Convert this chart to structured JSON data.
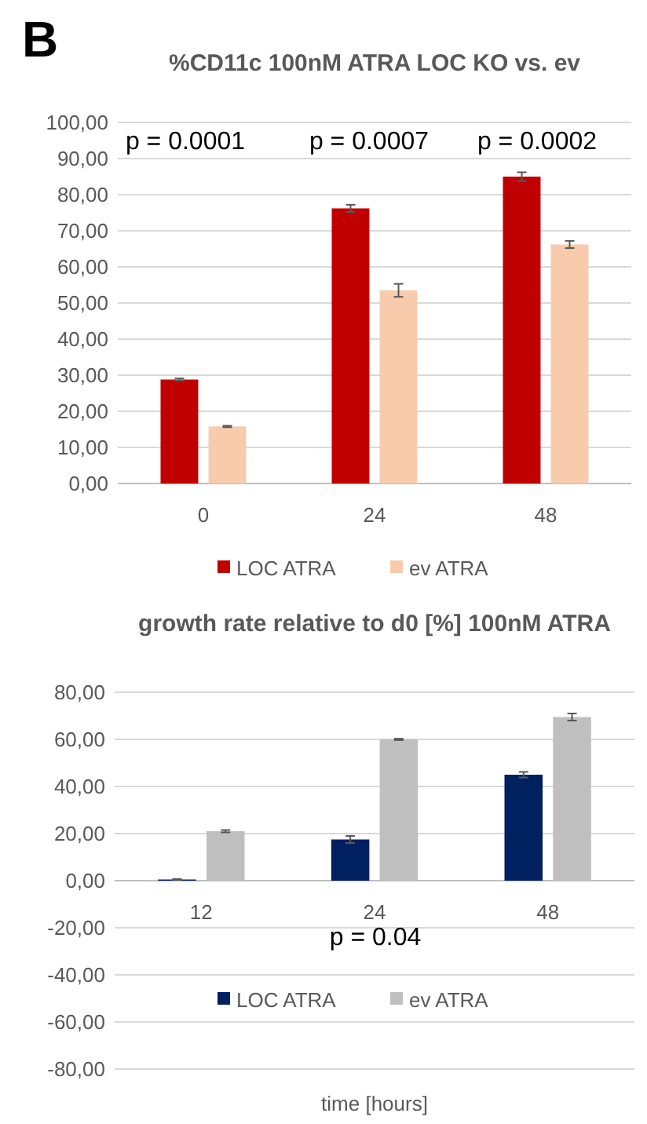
{
  "chart_data": [
    {
      "type": "bar",
      "title": "%CD11c 100nM ATRA LOC KO vs. ev",
      "categories": [
        "0",
        "24",
        "48"
      ],
      "series": [
        {
          "name": "LOC ATRA",
          "color": "#c00000",
          "values": [
            28.8,
            76.2,
            85
          ],
          "errors": [
            0.3,
            1,
            1.2
          ]
        },
        {
          "name": "ev ATRA",
          "color": "#f8cbad",
          "values": [
            15.8,
            53.5,
            66.2
          ],
          "errors": [
            0.2,
            1.8,
            1
          ]
        }
      ],
      "ylim": [
        0,
        100
      ],
      "yticks": [
        {
          "value": 0,
          "label": "0,00"
        },
        {
          "value": 10,
          "label": "10,00"
        },
        {
          "value": 20,
          "label": "20,00"
        },
        {
          "value": 30,
          "label": "30,00"
        },
        {
          "value": 40,
          "label": "40,00"
        },
        {
          "value": 50,
          "label": "50,00"
        },
        {
          "value": 60,
          "label": "60,00"
        },
        {
          "value": 70,
          "label": "70,00"
        },
        {
          "value": 80,
          "label": "80,00"
        },
        {
          "value": 90,
          "label": "90,00"
        },
        {
          "value": 100,
          "label": "100,00"
        }
      ],
      "grid": "y",
      "legend": "bottom",
      "annotations": [
        "B",
        "p = 0.0001",
        "p = 0.0007",
        "p = 0.0002"
      ]
    },
    {
      "type": "bar",
      "title": "growth rate relative to d0 [%] 100nM ATRA",
      "xlabel": "time [hours]",
      "categories": [
        "12",
        "24",
        "48"
      ],
      "series": [
        {
          "name": "LOC ATRA",
          "color": "#002060",
          "values": [
            0.5,
            17.5,
            45
          ],
          "errors": [
            0.2,
            1.5,
            1.2
          ]
        },
        {
          "name": "ev ATRA",
          "color": "#bfbfbf",
          "values": [
            21,
            60,
            69.5
          ],
          "errors": [
            0.5,
            0.3,
            1.5
          ]
        }
      ],
      "ylim": [
        -80,
        80
      ],
      "yticks": [
        {
          "value": -80,
          "label": "-80,00"
        },
        {
          "value": -60,
          "label": "-60,00"
        },
        {
          "value": -40,
          "label": "-40,00"
        },
        {
          "value": -20,
          "label": "-20,00"
        },
        {
          "value": 0,
          "label": "0,00"
        },
        {
          "value": 20,
          "label": "20,00"
        },
        {
          "value": 40,
          "label": "40,00"
        },
        {
          "value": 60,
          "label": "60,00"
        },
        {
          "value": 80,
          "label": "80,00"
        }
      ],
      "grid": "y",
      "legend": "bottom",
      "annotations": [
        "p = 0.04"
      ]
    }
  ]
}
